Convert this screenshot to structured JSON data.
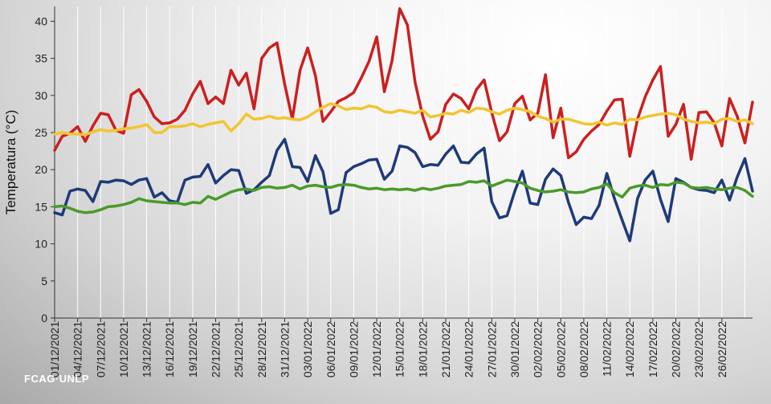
{
  "chart_data": {
    "type": "line",
    "ylabel": "Temperatura (°C)",
    "ylim": [
      0,
      42
    ],
    "yticks": [
      0,
      5,
      10,
      15,
      20,
      25,
      30,
      35,
      40
    ],
    "grid": "vertical",
    "x_start": "01/12/2021",
    "x_tick_labels": [
      "01/12/2021",
      "04/12/2021",
      "07/12/2021",
      "10/12/2021",
      "13/12/2021",
      "16/12/2021",
      "19/12/2021",
      "22/12/2021",
      "25/12/2021",
      "28/12/2021",
      "31/12/2021",
      "03/01/2022",
      "06/01/2022",
      "09/01/2022",
      "12/01/2022",
      "15/01/2022",
      "18/01/2022",
      "21/01/2022",
      "24/01/2022",
      "27/01/2022",
      "30/01/2022",
      "02/02/2022",
      "05/02/2022",
      "08/02/2022",
      "11/02/2022",
      "14/02/2022",
      "17/02/2022",
      "20/02/2022",
      "23/02/2022",
      "26/02/2022"
    ],
    "series": [
      {
        "color": "#cc1f1f",
        "values": [
          22.6,
          24.5,
          24.9,
          25.8,
          23.8,
          25.9,
          27.6,
          27.4,
          25.3,
          24.9,
          30.1,
          30.8,
          29.2,
          27.1,
          26.2,
          26.3,
          26.8,
          28.0,
          30.2,
          31.9,
          28.9,
          29.8,
          28.9,
          33.4,
          31.4,
          33.0,
          28.2,
          35.0,
          36.4,
          37.1,
          31.5,
          26.8,
          33.4,
          36.4,
          32.7,
          26.5,
          27.8,
          29.2,
          29.7,
          30.4,
          32.4,
          34.6,
          37.9,
          30.5,
          34.7,
          41.7,
          39.5,
          31.8,
          27.2,
          24.1,
          25.1,
          28.8,
          30.2,
          29.6,
          28.2,
          30.8,
          32.1,
          27.7,
          23.9,
          25.1,
          28.9,
          29.9,
          26.7,
          27.6,
          32.8,
          24.3,
          28.3,
          21.6,
          22.4,
          24.1,
          25.2,
          26.1,
          27.9,
          29.4,
          29.5,
          21.8,
          26.8,
          29.8,
          32.1,
          33.9,
          24.5,
          26.1,
          28.8,
          21.4,
          27.7,
          27.8,
          26.3,
          23.2,
          29.6,
          27.2,
          23.6,
          29.1
        ]
      },
      {
        "color": "#f2c530",
        "values": [
          24.8,
          25.0,
          24.8,
          24.8,
          24.7,
          25.1,
          25.4,
          25.2,
          25.3,
          25.5,
          25.6,
          25.8,
          26.1,
          25.0,
          25.0,
          25.8,
          25.8,
          25.9,
          26.2,
          25.8,
          26.1,
          26.3,
          26.5,
          25.2,
          26.2,
          27.5,
          26.8,
          26.9,
          27.2,
          26.9,
          27.0,
          26.8,
          26.7,
          27.1,
          27.8,
          28.4,
          28.9,
          28.6,
          28.1,
          28.3,
          28.2,
          28.6,
          28.4,
          27.8,
          27.7,
          28.0,
          27.8,
          27.6,
          28.0,
          27.1,
          27.3,
          27.6,
          27.5,
          28.0,
          27.7,
          28.3,
          28.2,
          27.8,
          27.5,
          28.0,
          28.3,
          28.1,
          27.8,
          27.2,
          26.9,
          26.4,
          26.8,
          26.8,
          26.5,
          26.2,
          26.1,
          26.4,
          26.0,
          26.3,
          26.1,
          26.8,
          26.7,
          27.1,
          27.3,
          27.5,
          27.6,
          27.4,
          26.8,
          26.5,
          26.3,
          26.4,
          26.2,
          26.8,
          26.9,
          26.5,
          26.7,
          26.2
        ]
      },
      {
        "color": "#1f3a7a",
        "values": [
          14.2,
          13.9,
          17.1,
          17.4,
          17.2,
          15.7,
          18.4,
          18.3,
          18.6,
          18.5,
          18.0,
          18.6,
          18.8,
          16.3,
          16.9,
          15.8,
          15.6,
          18.6,
          19.0,
          19.1,
          20.7,
          18.2,
          19.2,
          20.0,
          19.9,
          16.8,
          17.3,
          18.3,
          19.2,
          22.6,
          24.1,
          20.4,
          20.3,
          18.4,
          21.9,
          19.7,
          14.1,
          14.6,
          19.6,
          20.4,
          20.8,
          21.3,
          21.4,
          18.7,
          19.8,
          23.2,
          23.0,
          22.3,
          20.4,
          20.7,
          20.6,
          22.1,
          23.2,
          21.0,
          20.9,
          22.1,
          22.9,
          15.7,
          13.5,
          13.8,
          17.1,
          19.8,
          15.5,
          15.3,
          18.7,
          20.1,
          19.2,
          15.6,
          12.6,
          13.6,
          13.4,
          15.2,
          19.5,
          16.1,
          13.2,
          10.4,
          16.1,
          18.6,
          19.8,
          16.0,
          13.0,
          18.8,
          18.3,
          17.6,
          17.3,
          17.2,
          16.9,
          18.6,
          15.9,
          19.0,
          21.5,
          17.1
        ]
      },
      {
        "color": "#4a9a2a",
        "values": [
          15.0,
          15.1,
          14.8,
          14.4,
          14.2,
          14.3,
          14.6,
          15.0,
          15.1,
          15.3,
          15.6,
          16.1,
          15.8,
          15.7,
          15.6,
          15.5,
          15.5,
          15.3,
          15.6,
          15.5,
          16.4,
          16.0,
          16.5,
          17.0,
          17.3,
          17.4,
          17.2,
          17.6,
          17.7,
          17.5,
          17.6,
          17.9,
          17.4,
          17.8,
          17.9,
          17.7,
          17.6,
          17.9,
          18.0,
          17.9,
          17.6,
          17.4,
          17.5,
          17.3,
          17.4,
          17.3,
          17.4,
          17.2,
          17.5,
          17.3,
          17.5,
          17.8,
          17.9,
          18.0,
          18.4,
          18.3,
          18.5,
          17.8,
          18.2,
          18.6,
          18.4,
          18.2,
          17.5,
          17.2,
          17.0,
          17.1,
          17.3,
          17.0,
          16.9,
          17.0,
          17.4,
          17.6,
          18.1,
          16.9,
          16.3,
          17.5,
          17.8,
          17.9,
          17.6,
          18.0,
          17.9,
          18.3,
          18.2,
          17.6,
          17.5,
          17.6,
          17.4,
          17.3,
          17.5,
          17.6,
          17.2,
          16.4
        ]
      }
    ]
  },
  "branding": {
    "text": "FCAG·UNLP"
  }
}
